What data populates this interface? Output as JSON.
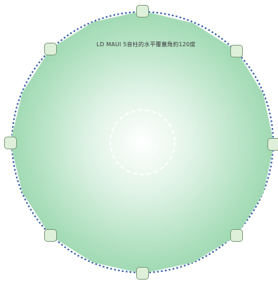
{
  "caption": "LD MAUI 5音柱的水平覆蓋角約120度",
  "speakers": [
    {
      "name": "speaker-north"
    },
    {
      "name": "speaker-northeast"
    },
    {
      "name": "speaker-east"
    },
    {
      "name": "speaker-southeast"
    },
    {
      "name": "speaker-south"
    },
    {
      "name": "speaker-southwest"
    },
    {
      "name": "speaker-west"
    },
    {
      "name": "speaker-northwest"
    }
  ],
  "colors": {
    "coverage_fill": "#8fd3a6",
    "coverage_fill_light": "#c6ecd2",
    "coverage_stroke": "#9fd6b0",
    "outer_ring": "#2f5aa8",
    "inner_ring": "#ffffff",
    "speaker_fill": "#dff0da",
    "speaker_stroke": "#7a9a78"
  },
  "coverage_angle_deg": 120
}
